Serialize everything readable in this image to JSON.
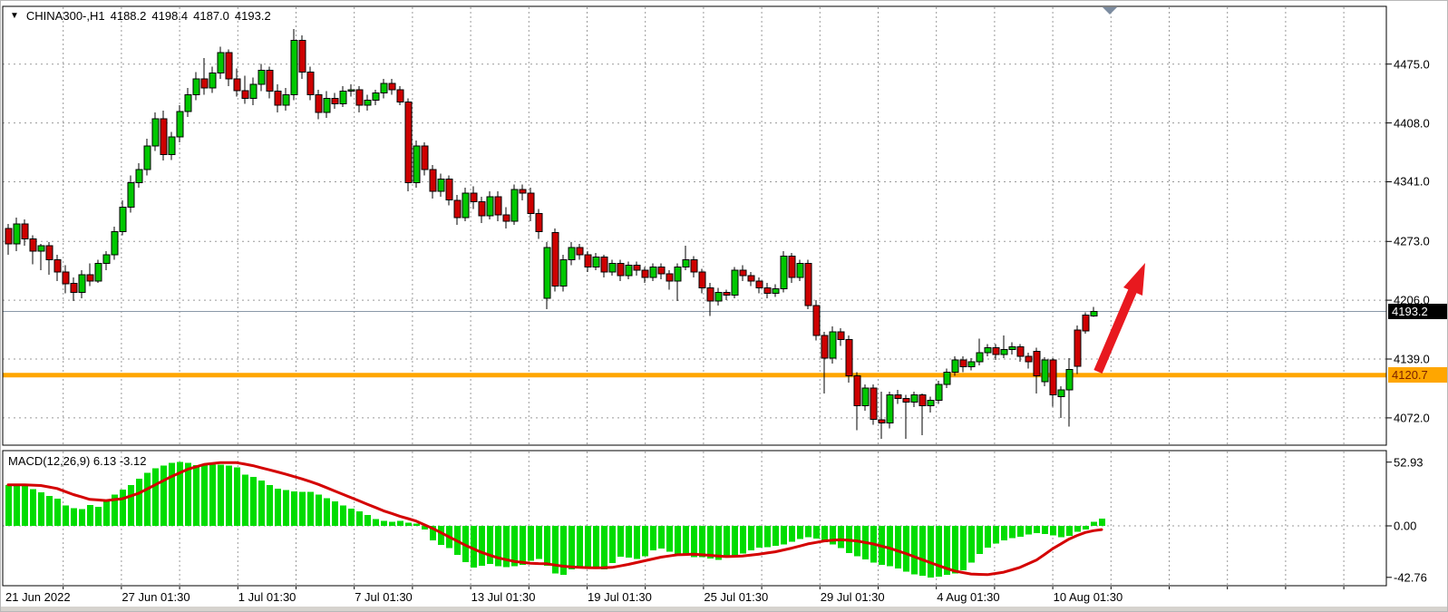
{
  "header": {
    "symbol": "CHINA300-,H1",
    "open": "4188.2",
    "high": "4198.4",
    "low": "4187.0",
    "close": "4193.2",
    "dropdown_glyph": "▼"
  },
  "price_axis": {
    "ticks": [
      "4475.0",
      "4408.0",
      "4341.0",
      "4273.0",
      "4206.0",
      "4139.0",
      "4072.0"
    ],
    "current_price_label": "4193.2",
    "support_line_label": "4120.7"
  },
  "macd_panel": {
    "label": "MACD(12,26,9) 6.13 -3.12",
    "ticks": [
      "52.93",
      "0.00",
      "-42.76"
    ]
  },
  "time_axis": {
    "labels": [
      "21 Jun 2022",
      "27 Jun 01:30",
      "1 Jul 01:30",
      "7 Jul 01:30",
      "13 Jul 01:30",
      "19 Jul 01:30",
      "25 Jul 01:30",
      "29 Jul 01:30",
      "4 Aug 01:30",
      "10 Aug 01:30"
    ]
  },
  "colors": {
    "bull": "#00c800",
    "bear": "#ce0000",
    "wick": "#000000",
    "macd_hist": "#00dc00",
    "macd_signal": "#d40000",
    "support_line": "#ffa600",
    "current_price_line": "#8a98a8",
    "grid": "#999999",
    "arrow": "#e8191f",
    "scroll_marker": "#7c8ca0"
  },
  "chart_data": [
    {
      "type": "candlestick",
      "title": "CHINA300-,H1",
      "timeframe": "H1",
      "ylabel": "price",
      "y_ticks": [
        4475.0,
        4408.0,
        4341.0,
        4273.0,
        4206.0,
        4139.0,
        4072.0
      ],
      "current_price": 4193.2,
      "horizontal_line_price": 4120.7,
      "last_bar_ohlc": [
        4188.2,
        4198.4,
        4187.0,
        4193.2
      ],
      "candles": [
        [
          4288,
          4293,
          4258,
          4270
        ],
        [
          4270,
          4300,
          4262,
          4293
        ],
        [
          4293,
          4298,
          4268,
          4276
        ],
        [
          4276,
          4280,
          4247,
          4262
        ],
        [
          4262,
          4270,
          4240,
          4268
        ],
        [
          4268,
          4272,
          4235,
          4252
        ],
        [
          4252,
          4258,
          4228,
          4238
        ],
        [
          4238,
          4246,
          4214,
          4225
        ],
        [
          4225,
          4232,
          4205,
          4215
        ],
        [
          4215,
          4240,
          4208,
          4235
        ],
        [
          4235,
          4248,
          4222,
          4228
        ],
        [
          4228,
          4252,
          4226,
          4248
        ],
        [
          4248,
          4262,
          4240,
          4258
        ],
        [
          4258,
          4290,
          4252,
          4284
        ],
        [
          4284,
          4320,
          4280,
          4312
        ],
        [
          4312,
          4348,
          4306,
          4340
        ],
        [
          4340,
          4362,
          4334,
          4355
        ],
        [
          4355,
          4390,
          4348,
          4382
        ],
        [
          4382,
          4420,
          4376,
          4413
        ],
        [
          4413,
          4422,
          4365,
          4372
        ],
        [
          4372,
          4398,
          4366,
          4392
        ],
        [
          4392,
          4428,
          4386,
          4421
        ],
        [
          4421,
          4448,
          4415,
          4440
        ],
        [
          4440,
          4466,
          4434,
          4458
        ],
        [
          4458,
          4482,
          4440,
          4448
        ],
        [
          4448,
          4472,
          4442,
          4465
        ],
        [
          4465,
          4495,
          4458,
          4488
        ],
        [
          4488,
          4492,
          4450,
          4458
        ],
        [
          4458,
          4470,
          4438,
          4445
        ],
        [
          4445,
          4462,
          4430,
          4436
        ],
        [
          4436,
          4460,
          4428,
          4452
        ],
        [
          4452,
          4475,
          4444,
          4468
        ],
        [
          4468,
          4472,
          4436,
          4444
        ],
        [
          4444,
          4452,
          4420,
          4428
        ],
        [
          4428,
          4448,
          4422,
          4440
        ],
        [
          4440,
          4515,
          4434,
          4502
        ],
        [
          4502,
          4508,
          4458,
          4466
        ],
        [
          4466,
          4472,
          4434,
          4440
        ],
        [
          4440,
          4446,
          4412,
          4420
        ],
        [
          4420,
          4444,
          4414,
          4436
        ],
        [
          4436,
          4442,
          4424,
          4430
        ],
        [
          4430,
          4450,
          4426,
          4444
        ],
        [
          4444,
          4452,
          4438,
          4446
        ],
        [
          4446,
          4450,
          4420,
          4428
        ],
        [
          4428,
          4440,
          4422,
          4434
        ],
        [
          4434,
          4446,
          4428,
          4442
        ],
        [
          4442,
          4458,
          4436,
          4453
        ],
        [
          4453,
          4458,
          4440,
          4446
        ],
        [
          4446,
          4450,
          4428,
          4432
        ],
        [
          4432,
          4436,
          4330,
          4340
        ],
        [
          4340,
          4388,
          4334,
          4382
        ],
        [
          4382,
          4386,
          4348,
          4355
        ],
        [
          4355,
          4360,
          4322,
          4330
        ],
        [
          4330,
          4350,
          4324,
          4344
        ],
        [
          4344,
          4348,
          4314,
          4320
        ],
        [
          4320,
          4326,
          4292,
          4300
        ],
        [
          4300,
          4334,
          4296,
          4328
        ],
        [
          4328,
          4336,
          4310,
          4318
        ],
        [
          4318,
          4324,
          4294,
          4302
        ],
        [
          4302,
          4330,
          4298,
          4324
        ],
        [
          4324,
          4330,
          4296,
          4303
        ],
        [
          4303,
          4312,
          4288,
          4296
        ],
        [
          4296,
          4338,
          4292,
          4332
        ],
        [
          4332,
          4338,
          4320,
          4328
        ],
        [
          4328,
          4334,
          4296,
          4305
        ],
        [
          4305,
          4310,
          4276,
          4284
        ],
        [
          4208,
          4272,
          4196,
          4266
        ],
        [
          4283,
          4288,
          4216,
          4222
        ],
        [
          4222,
          4258,
          4216,
          4252
        ],
        [
          4252,
          4272,
          4246,
          4266
        ],
        [
          4266,
          4270,
          4252,
          4258
        ],
        [
          4258,
          4262,
          4238,
          4244
        ],
        [
          4244,
          4260,
          4240,
          4255
        ],
        [
          4255,
          4258,
          4232,
          4238
        ],
        [
          4238,
          4252,
          4234,
          4248
        ],
        [
          4248,
          4252,
          4228,
          4234
        ],
        [
          4234,
          4250,
          4230,
          4246
        ],
        [
          4246,
          4250,
          4234,
          4240
        ],
        [
          4240,
          4244,
          4226,
          4232
        ],
        [
          4232,
          4248,
          4228,
          4244
        ],
        [
          4244,
          4248,
          4230,
          4236
        ],
        [
          4236,
          4240,
          4218,
          4228
        ],
        [
          4228,
          4248,
          4205,
          4244
        ],
        [
          4244,
          4268,
          4240,
          4252
        ],
        [
          4252,
          4256,
          4232,
          4238
        ],
        [
          4238,
          4242,
          4214,
          4220
        ],
        [
          4220,
          4226,
          4188,
          4205
        ],
        [
          4205,
          4220,
          4200,
          4215
        ],
        [
          4215,
          4218,
          4206,
          4212
        ],
        [
          4212,
          4244,
          4208,
          4240
        ],
        [
          4240,
          4246,
          4228,
          4234
        ],
        [
          4234,
          4238,
          4222,
          4228
        ],
        [
          4228,
          4232,
          4214,
          4220
        ],
        [
          4220,
          4226,
          4208,
          4214
        ],
        [
          4214,
          4224,
          4210,
          4219
        ],
        [
          4219,
          4262,
          4215,
          4256
        ],
        [
          4256,
          4260,
          4226,
          4232
        ],
        [
          4232,
          4252,
          4228,
          4248
        ],
        [
          4248,
          4252,
          4196,
          4200
        ],
        [
          4200,
          4206,
          4160,
          4166
        ],
        [
          4166,
          4170,
          4100,
          4140
        ],
        [
          4140,
          4176,
          4134,
          4170
        ],
        [
          4170,
          4174,
          4154,
          4161
        ],
        [
          4161,
          4166,
          4112,
          4120
        ],
        [
          4120,
          4124,
          4058,
          4086
        ],
        [
          4086,
          4110,
          4080,
          4106
        ],
        [
          4106,
          4110,
          4064,
          4070
        ],
        [
          4070,
          4102,
          4048,
          4066
        ],
        [
          4066,
          4102,
          4060,
          4098
        ],
        [
          4098,
          4104,
          4088,
          4094
        ],
        [
          4094,
          4098,
          4048,
          4090
        ],
        [
          4090,
          4102,
          4084,
          4098
        ],
        [
          4098,
          4100,
          4052,
          4086
        ],
        [
          4086,
          4096,
          4078,
          4092
        ],
        [
          4092,
          4114,
          4088,
          4110
        ],
        [
          4110,
          4128,
          4106,
          4124
        ],
        [
          4124,
          4142,
          4120,
          4138
        ],
        [
          4138,
          4142,
          4124,
          4130
        ],
        [
          4130,
          4140,
          4126,
          4136
        ],
        [
          4136,
          4162,
          4132,
          4146
        ],
        [
          4146,
          4156,
          4142,
          4152
        ],
        [
          4152,
          4156,
          4138,
          4144
        ],
        [
          4144,
          4166,
          4140,
          4150
        ],
        [
          4150,
          4158,
          4144,
          4153
        ],
        [
          4153,
          4156,
          4136,
          4142
        ],
        [
          4142,
          4146,
          4128,
          4136
        ],
        [
          4148,
          4152,
          4100,
          4120
        ],
        [
          4113,
          4141,
          4108,
          4138
        ],
        [
          4138,
          4140,
          4085,
          4098
        ],
        [
          4096,
          4108,
          4072,
          4104
        ],
        [
          4104,
          4140,
          4062,
          4127
        ],
        [
          4172,
          4177,
          4122,
          4131
        ],
        [
          4189,
          4192,
          4168,
          4171
        ],
        [
          4188.2,
          4198.4,
          4187.0,
          4193.2
        ]
      ]
    },
    {
      "type": "bar",
      "title": "MACD(12,26,9)",
      "main_value": 6.13,
      "signal_value": -3.12,
      "y_ticks": [
        52.93,
        0.0,
        -42.76
      ],
      "histogram": [
        34,
        33.5,
        33,
        30.5,
        28,
        25,
        22.5,
        17,
        14.5,
        14,
        17.5,
        16,
        22,
        26,
        30,
        34,
        39,
        44,
        48,
        50,
        52.3,
        52.9,
        52.5,
        50.5,
        50.8,
        51,
        51,
        50,
        48.7,
        42.7,
        40.5,
        37.5,
        34,
        31,
        29.8,
        28.5,
        28.3,
        28.3,
        26,
        22.8,
        20.5,
        17,
        14.2,
        12,
        9,
        5.5,
        4.3,
        3.3,
        4,
        2.8,
        1.8,
        -3,
        -12,
        -16,
        -18.5,
        -24,
        -30,
        -34.5,
        -33,
        -31.5,
        -33.5,
        -34.2,
        -33.5,
        -32.2,
        -29,
        -27.5,
        -33,
        -39.5,
        -40.5,
        -36,
        -34,
        -33.8,
        -34.2,
        -36,
        -31,
        -25.5,
        -26.5,
        -27.3,
        -25.2,
        -20.5,
        -18.8,
        -21.5,
        -23.2,
        -24.5,
        -25.8,
        -26.1,
        -27,
        -28.4,
        -26.5,
        -25.2,
        -23,
        -20.5,
        -18.2,
        -17.6,
        -16.6,
        -15.4,
        -13.2,
        -11,
        -9.5,
        -10.5,
        -13.5,
        -15.3,
        -18.5,
        -22.5,
        -25.4,
        -27.8,
        -30.4,
        -32.5,
        -33.4,
        -35.5,
        -38,
        -40.2,
        -41.5,
        -42.76,
        -42.2,
        -40.5,
        -39.5,
        -36.8,
        -30.5,
        -23.5,
        -18,
        -14.5,
        -12,
        -10.2,
        -9.2,
        -7.3,
        -6,
        -6.8,
        -8,
        -9.4,
        -8.4,
        -5,
        -3,
        3.5,
        6.13
      ],
      "signal": [
        34,
        34,
        34,
        33.8,
        33.5,
        32.3,
        31,
        28.5,
        26,
        24,
        22,
        21.5,
        21,
        21.8,
        22.5,
        24.8,
        27,
        30.5,
        34,
        37.5,
        41,
        44,
        47,
        49,
        51,
        51.8,
        52.5,
        52.5,
        52.5,
        51.3,
        50,
        48.3,
        46.5,
        44.8,
        43,
        41,
        39,
        36.8,
        34.5,
        31.8,
        29,
        26.3,
        23.5,
        20.8,
        18,
        15.3,
        12.5,
        10.3,
        8,
        6,
        4,
        1,
        -2,
        -5.5,
        -9,
        -12.5,
        -16,
        -19,
        -22,
        -24.3,
        -26.5,
        -28,
        -29.5,
        -30.3,
        -31,
        -31.3,
        -31.5,
        -32.5,
        -33.5,
        -34,
        -34.5,
        -34.7,
        -34.8,
        -34.7,
        -34.5,
        -33.3,
        -32,
        -30.5,
        -29,
        -27.5,
        -26,
        -25,
        -24,
        -23.8,
        -23.5,
        -24,
        -24.5,
        -25,
        -25.5,
        -25.3,
        -25,
        -24.3,
        -23.5,
        -22.5,
        -21.5,
        -20,
        -18.5,
        -16.8,
        -15,
        -13.8,
        -12.5,
        -12,
        -11.5,
        -12,
        -12.5,
        -13.8,
        -15,
        -16.8,
        -18.5,
        -20.8,
        -23,
        -25.5,
        -28,
        -30.5,
        -33,
        -35.3,
        -37.5,
        -38.8,
        -40,
        -40.3,
        -40.5,
        -39.5,
        -38.5,
        -36.5,
        -34.5,
        -31.5,
        -28.5,
        -23.8,
        -19,
        -15,
        -11,
        -8,
        -5.5,
        -4,
        -3.12
      ]
    }
  ]
}
